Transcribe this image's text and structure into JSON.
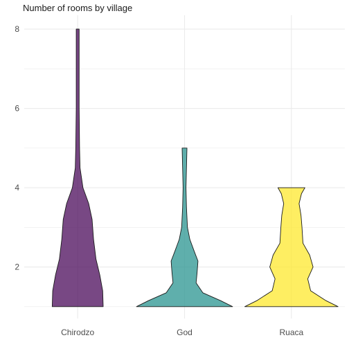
{
  "chart_data": {
    "type": "violin",
    "title": "Number of rooms by village",
    "xlabel": "",
    "ylabel": "",
    "categories": [
      "Chirodzo",
      "God",
      "Ruaca"
    ],
    "colors": [
      "#440154",
      "#21908C",
      "#FDE725"
    ],
    "y_ticks": [
      2,
      4,
      6,
      8
    ],
    "ylim": [
      0.7,
      8.35
    ],
    "grid": true,
    "legend": "none",
    "violins": [
      {
        "name": "Chirodzo",
        "profile": [
          [
            1,
            0.53
          ],
          [
            1.4,
            0.52
          ],
          [
            1.8,
            0.46
          ],
          [
            2.2,
            0.38
          ],
          [
            2.7,
            0.33
          ],
          [
            3.2,
            0.3
          ],
          [
            3.6,
            0.23
          ],
          [
            4.0,
            0.11
          ],
          [
            4.5,
            0.05
          ],
          [
            5.0,
            0.04
          ],
          [
            6.0,
            0.03
          ],
          [
            7.0,
            0.03
          ],
          [
            8.0,
            0.03
          ]
        ]
      },
      {
        "name": "God",
        "profile": [
          [
            1,
            1.0
          ],
          [
            1.15,
            0.75
          ],
          [
            1.35,
            0.38
          ],
          [
            1.6,
            0.24
          ],
          [
            1.85,
            0.26
          ],
          [
            2.15,
            0.28
          ],
          [
            2.4,
            0.2
          ],
          [
            2.7,
            0.11
          ],
          [
            3.0,
            0.06
          ],
          [
            3.5,
            0.04
          ],
          [
            4.0,
            0.03
          ],
          [
            4.5,
            0.04
          ],
          [
            5.0,
            0.05
          ]
        ]
      },
      {
        "name": "Ruaca",
        "profile": [
          [
            1,
            0.97
          ],
          [
            1.15,
            0.72
          ],
          [
            1.4,
            0.4
          ],
          [
            1.7,
            0.34
          ],
          [
            2.0,
            0.45
          ],
          [
            2.3,
            0.38
          ],
          [
            2.6,
            0.24
          ],
          [
            3.0,
            0.22
          ],
          [
            3.3,
            0.2
          ],
          [
            3.6,
            0.16
          ],
          [
            3.85,
            0.21
          ],
          [
            4.0,
            0.28
          ]
        ]
      }
    ]
  }
}
